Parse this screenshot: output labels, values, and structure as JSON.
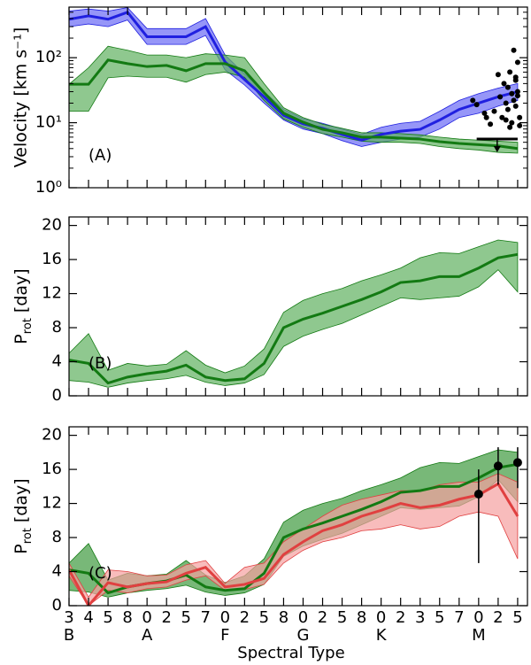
{
  "chart_data": [
    {
      "type": "band",
      "yscale": "log",
      "ylim": [
        1,
        600
      ],
      "yticks": [
        {
          "value": 1,
          "label": "10⁰"
        },
        {
          "value": 10,
          "label": "10¹"
        },
        {
          "value": 100,
          "label": "10²"
        }
      ],
      "ylabel": "Velocity [km s⁻¹]",
      "annotation": "(A)",
      "series": [
        {
          "color": "#2020e0",
          "fill": "#6a6af5",
          "values": [
            390,
            440,
            390,
            500,
            210,
            210,
            210,
            300,
            86,
            46,
            25,
            13,
            9.6,
            8.2,
            6.6,
            5.4,
            6.6,
            7.4,
            7.9,
            11,
            16,
            20,
            25,
            30
          ],
          "lower": [
            300,
            330,
            300,
            380,
            160,
            160,
            160,
            220,
            65,
            38,
            20,
            11,
            8,
            6.8,
            5.3,
            4.3,
            5,
            5.6,
            6,
            8,
            12,
            14,
            18,
            22
          ],
          "upper": [
            520,
            560,
            520,
            590,
            280,
            280,
            280,
            400,
            110,
            56,
            30,
            16,
            11.5,
            9.8,
            8,
            6.6,
            8.5,
            9.8,
            10.5,
            15,
            22,
            28,
            34,
            40
          ]
        },
        {
          "color": "#137a13",
          "fill": "#5fb05f",
          "values": [
            39,
            39,
            92,
            81,
            73,
            76,
            63,
            81,
            81,
            63,
            29,
            14,
            10.2,
            7.9,
            7,
            6,
            6,
            5.8,
            5.6,
            5.1,
            4.8,
            4.6,
            4.4,
            4
          ],
          "lower": [
            15,
            15,
            49,
            52,
            50,
            50,
            42,
            55,
            60,
            50,
            22,
            11.5,
            8.5,
            6.8,
            6,
            5.2,
            5,
            5,
            4.8,
            4.3,
            4,
            3.8,
            3.5,
            3.4
          ],
          "upper": [
            39,
            70,
            150,
            130,
            110,
            110,
            100,
            115,
            110,
            100,
            40,
            17,
            12,
            9.5,
            8.2,
            7,
            7,
            6.8,
            6.5,
            6,
            5.6,
            5.4,
            5.2,
            5
          ]
        }
      ],
      "points": {
        "color": "#000000",
        "x": [
          20.7,
          20.9,
          21.3,
          21.4,
          21.6,
          21.8,
          22.0,
          22.1,
          22.2,
          22.3,
          22.4,
          22.5,
          22.5,
          22.6,
          22.7,
          22.7,
          22.8,
          22.8,
          22.9,
          22.9,
          23.0,
          23.0,
          23.1,
          23.1,
          22.6,
          22.4,
          23.0,
          22.9
        ],
        "values": [
          22,
          19,
          14,
          12,
          9.5,
          15,
          55,
          25,
          12,
          40,
          20,
          35,
          16,
          60,
          28,
          10,
          22,
          130,
          18,
          45,
          26,
          85,
          12,
          9,
          8.5,
          11,
          30,
          50
        ]
      },
      "upper_limit": {
        "value": 5.6,
        "x": [
          20.9,
          23.0
        ]
      }
    },
    {
      "type": "band",
      "ylim": [
        0,
        21
      ],
      "yticks": [
        0,
        4,
        8,
        12,
        16,
        20
      ],
      "ylabel": "P",
      "ylabel_sub": "rot",
      "ylabel_unit": "[day]",
      "annotation": "(B)",
      "series": [
        {
          "color": "#137a13",
          "fill": "#5fb05f",
          "values": [
            4.2,
            3.8,
            1.5,
            2.2,
            2.6,
            2.9,
            3.6,
            2.2,
            1.8,
            2.0,
            3.8,
            8.0,
            9.0,
            9.7,
            10.5,
            11.3,
            12.2,
            13.3,
            13.5,
            14.0,
            14.0,
            15.0,
            16.2,
            16.6
          ],
          "lower": [
            1.8,
            1.6,
            1.0,
            1.5,
            1.8,
            2.0,
            2.4,
            1.6,
            1.2,
            1.5,
            2.5,
            5.8,
            7.0,
            7.8,
            8.5,
            9.5,
            10.5,
            11.5,
            11.3,
            11.5,
            11.7,
            12.8,
            14.8,
            12.2
          ],
          "upper": [
            5.0,
            7.3,
            3.0,
            3.8,
            3.5,
            3.7,
            5.3,
            3.6,
            2.7,
            3.5,
            5.5,
            9.8,
            11.2,
            12.0,
            12.6,
            13.5,
            14.2,
            15.0,
            16.2,
            16.8,
            16.7,
            17.5,
            18.3,
            18.0
          ]
        }
      ]
    },
    {
      "type": "band",
      "ylim": [
        0,
        21
      ],
      "yticks": [
        0,
        4,
        8,
        12,
        16,
        20
      ],
      "ylabel": "P",
      "ylabel_sub": "rot",
      "ylabel_unit": "[day]",
      "annotation": "(C)",
      "categories": [
        "3",
        "4",
        "5",
        "8",
        "0",
        "2",
        "5",
        "7",
        "0",
        "2",
        "5",
        "8",
        "0",
        "2",
        "5",
        "8",
        "0",
        "2",
        "3",
        "5",
        "7",
        "0",
        "2",
        "5"
      ],
      "class_labels": [
        "B",
        null,
        null,
        null,
        "A",
        null,
        null,
        null,
        "F",
        null,
        null,
        null,
        "G",
        null,
        null,
        null,
        "K",
        null,
        null,
        null,
        null,
        "M",
        null,
        null
      ],
      "xlabel": "Spectral Type",
      "series": [
        {
          "color": "#137a13",
          "fill": "#3f9a3f",
          "values": [
            4.2,
            3.8,
            1.5,
            2.2,
            2.6,
            2.9,
            3.6,
            2.2,
            1.8,
            2.0,
            3.8,
            8.0,
            9.0,
            9.7,
            10.5,
            11.3,
            12.2,
            13.3,
            13.5,
            14.0,
            14.0,
            15.0,
            16.2,
            16.6
          ],
          "lower": [
            1.8,
            1.6,
            1.0,
            1.5,
            1.8,
            2.0,
            2.4,
            1.6,
            1.2,
            1.5,
            2.5,
            5.8,
            7.0,
            7.8,
            8.5,
            9.5,
            10.5,
            11.5,
            11.3,
            11.5,
            11.7,
            12.8,
            14.8,
            12.2
          ],
          "upper": [
            5.0,
            7.3,
            3.0,
            3.8,
            3.5,
            3.7,
            5.3,
            3.6,
            2.7,
            3.5,
            5.5,
            9.8,
            11.2,
            12.0,
            12.6,
            13.5,
            14.2,
            15.0,
            16.2,
            16.8,
            16.7,
            17.5,
            18.3,
            18.0
          ]
        },
        {
          "color": "#e04040",
          "fill": "#f5a0a0",
          "values": [
            4.2,
            0.0,
            2.7,
            2.2,
            2.6,
            2.8,
            3.8,
            4.5,
            2.2,
            2.5,
            3.2,
            6.0,
            7.5,
            8.8,
            9.5,
            10.5,
            11.2,
            12.0,
            11.5,
            11.8,
            12.5,
            13.0,
            14.3,
            10.5
          ],
          "lower": [
            3.5,
            0,
            1.8,
            1.5,
            2.0,
            2.2,
            3.0,
            3.5,
            1.8,
            1.9,
            2.5,
            5.0,
            6.5,
            7.5,
            8.0,
            8.8,
            9.0,
            9.5,
            9.0,
            9.3,
            10.5,
            11.0,
            10.5,
            5.5
          ],
          "upper": [
            5.0,
            1.0,
            4.2,
            4.0,
            3.5,
            3.6,
            4.8,
            5.3,
            2.6,
            4.5,
            5.0,
            7.5,
            9.0,
            10.5,
            11.8,
            12.5,
            13.0,
            13.5,
            13.5,
            14.2,
            14.5,
            14.5,
            15.5,
            14.5
          ]
        }
      ],
      "points": {
        "color": "#000000",
        "x": [
          21,
          22,
          23
        ],
        "values": [
          13.1,
          16.4,
          16.8
        ],
        "lower": [
          5.0,
          14.2,
          13.8
        ],
        "upper": [
          16.0,
          18.6,
          18.6
        ]
      }
    }
  ]
}
